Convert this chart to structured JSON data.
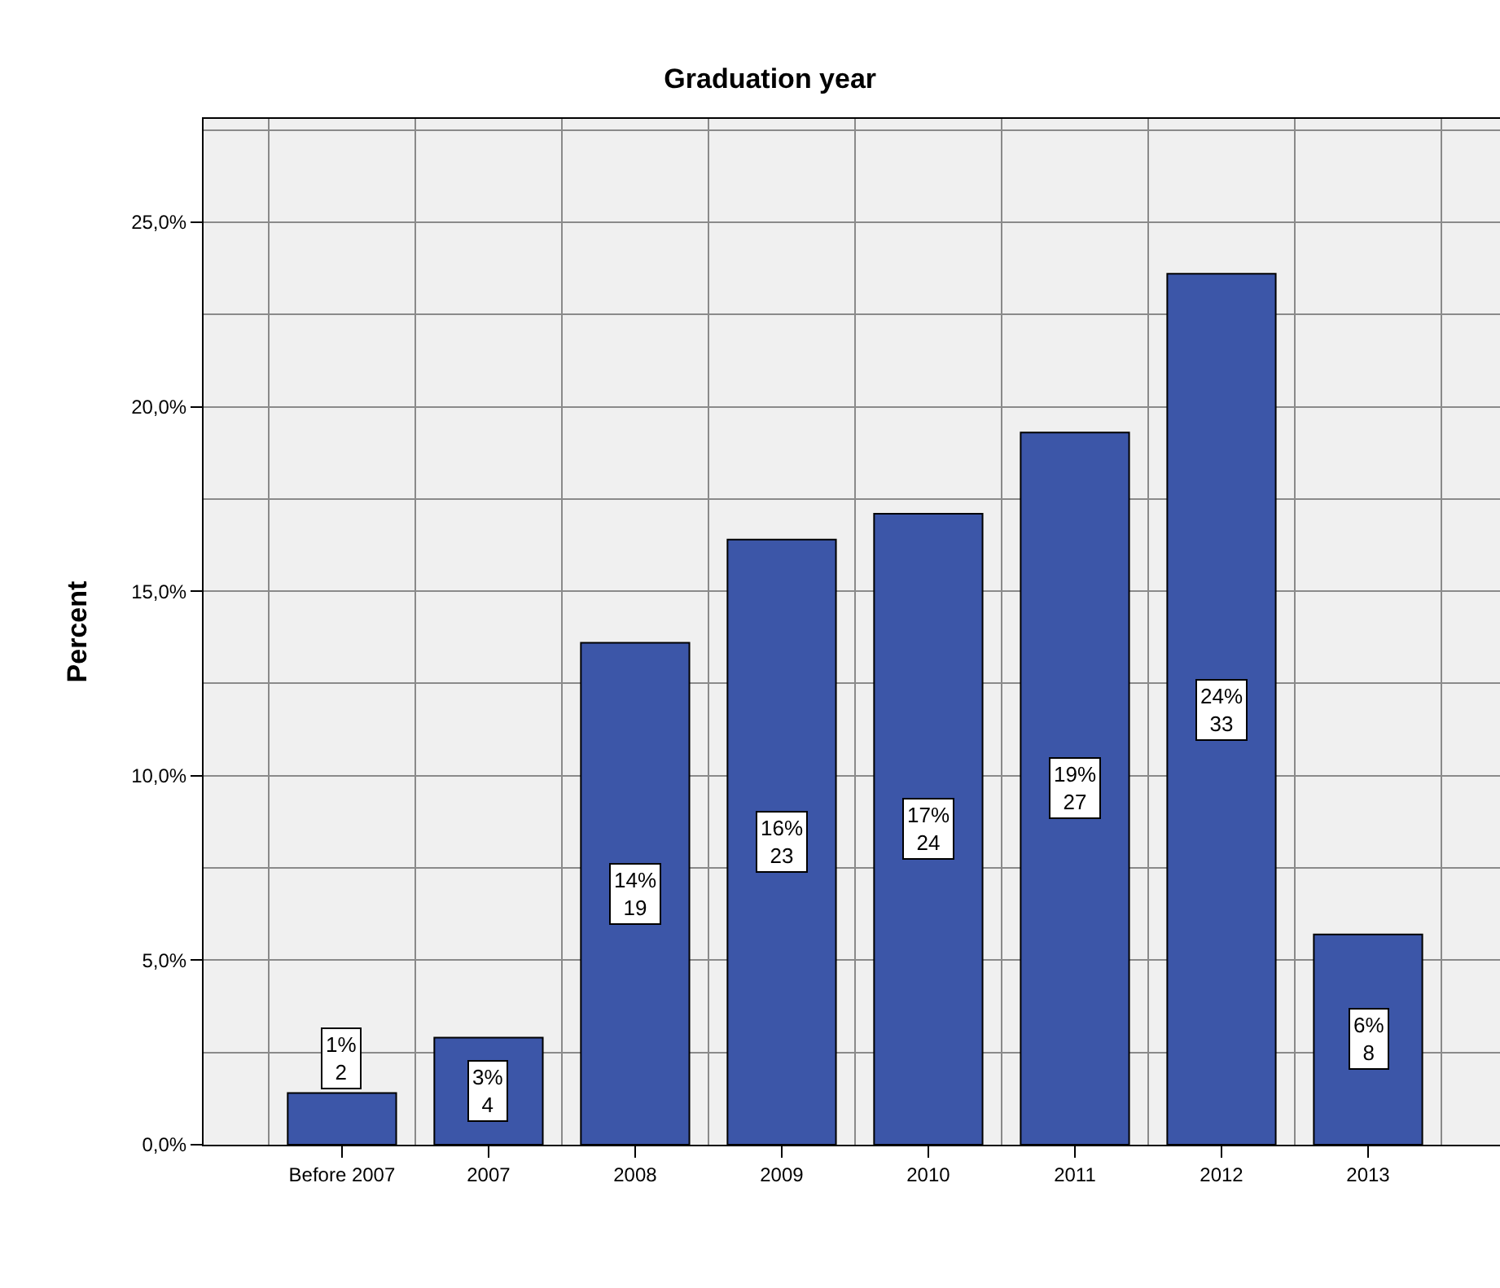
{
  "chart_data": {
    "type": "bar",
    "title": "Graduation year",
    "ylabel": "Percent",
    "categories": [
      "Before 2007",
      "2007",
      "2008",
      "2009",
      "2010",
      "2011",
      "2012",
      "2013"
    ],
    "values": [
      1.4,
      2.9,
      13.6,
      16.4,
      17.1,
      19.3,
      23.6,
      5.7
    ],
    "color": "#3c56a8",
    "value_labels": [
      "1%\n2",
      "3%\n4",
      "14%\n19",
      "16%\n23",
      "17%\n24",
      "19%\n27",
      "24%\n33",
      "6%\n8"
    ],
    "ylim": [
      0,
      27.8
    ],
    "yticks": [
      {
        "value": 0,
        "label": "0,0%"
      },
      {
        "value": 2.5,
        "label": null
      },
      {
        "value": 5,
        "label": "5,0%"
      },
      {
        "value": 7.5,
        "label": null
      },
      {
        "value": 10,
        "label": "10,0%"
      },
      {
        "value": 12.5,
        "label": null
      },
      {
        "value": 15,
        "label": "15,0%"
      },
      {
        "value": 17.5,
        "label": null
      },
      {
        "value": 20,
        "label": "20,0%"
      },
      {
        "value": 22.5,
        "label": null
      },
      {
        "value": 25,
        "label": "25,0%"
      },
      {
        "value": 27.5,
        "label": null
      }
    ],
    "grid": true
  }
}
